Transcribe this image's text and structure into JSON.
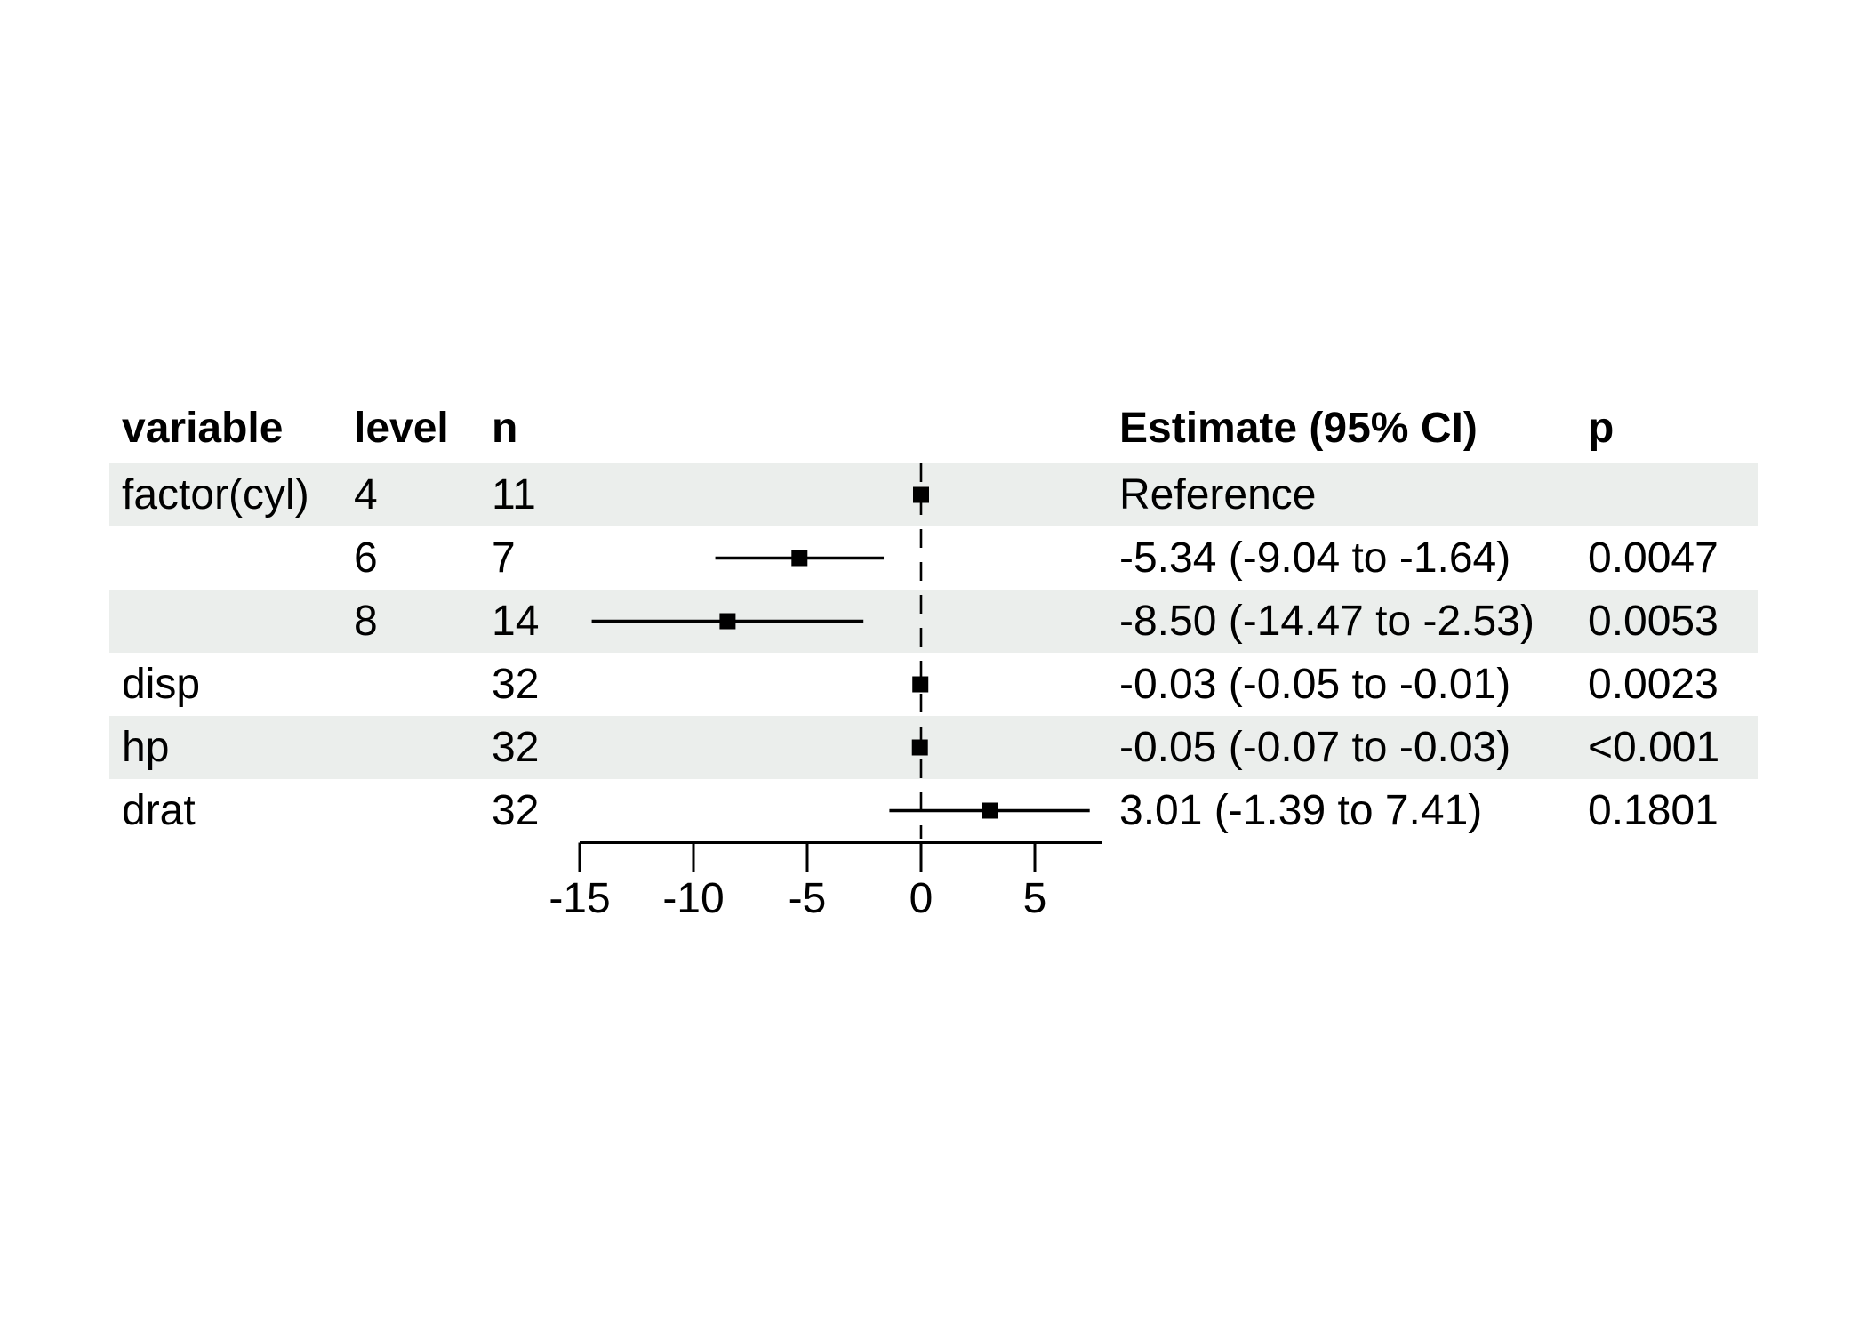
{
  "chart_data": {
    "type": "forest",
    "title": "",
    "columns": [
      {
        "key": "variable",
        "label": "variable"
      },
      {
        "key": "level",
        "label": "level"
      },
      {
        "key": "n",
        "label": "n"
      },
      {
        "key": "estimate",
        "label": "Estimate (95% CI)"
      },
      {
        "key": "p",
        "label": "p"
      }
    ],
    "rows": [
      {
        "variable": "factor(cyl)",
        "level": "4",
        "n": "11",
        "estimate": "Reference",
        "p": "",
        "est": 0,
        "lo": null,
        "hi": null,
        "reference": true,
        "shaded": true
      },
      {
        "variable": "",
        "level": "6",
        "n": "7",
        "estimate": "-5.34 (-9.04 to -1.64)",
        "p": "0.0047",
        "est": -5.34,
        "lo": -9.04,
        "hi": -1.64,
        "reference": false,
        "shaded": false
      },
      {
        "variable": "",
        "level": "8",
        "n": "14",
        "estimate": "-8.50 (-14.47 to -2.53)",
        "p": "0.0053",
        "est": -8.5,
        "lo": -14.47,
        "hi": -2.53,
        "reference": false,
        "shaded": true
      },
      {
        "variable": "disp",
        "level": "",
        "n": "32",
        "estimate": "-0.03 (-0.05 to -0.01)",
        "p": "0.0023",
        "est": -0.03,
        "lo": -0.05,
        "hi": -0.01,
        "reference": false,
        "shaded": false
      },
      {
        "variable": "hp",
        "level": "",
        "n": "32",
        "estimate": "-0.05 (-0.07 to -0.03)",
        "p": "<0.001",
        "est": -0.05,
        "lo": -0.07,
        "hi": -0.03,
        "reference": false,
        "shaded": true
      },
      {
        "variable": "drat",
        "level": "",
        "n": "32",
        "estimate": "3.01 (-1.39 to 7.41)",
        "p": "0.1801",
        "est": 3.01,
        "lo": -1.39,
        "hi": 7.41,
        "reference": false,
        "shaded": false
      }
    ],
    "axis": {
      "tick_values": [
        -15,
        -10,
        -5,
        0,
        5
      ],
      "tick_labels": [
        "-15",
        "-10",
        "-5",
        "0",
        "5"
      ],
      "zero_line": 0,
      "xlim": [
        -15,
        8
      ],
      "grid": false,
      "legend": false
    }
  },
  "colors": {
    "stripe": "#ebeeec",
    "ink": "#000000",
    "background": "#ffffff"
  }
}
